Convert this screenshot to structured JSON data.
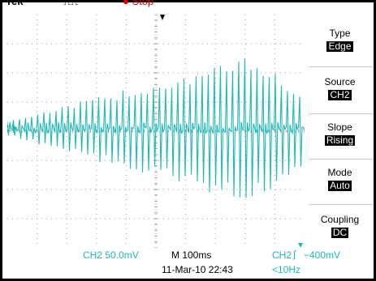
{
  "header": {
    "brand": "Tek",
    "acq_mode": "Stop",
    "acq_mode_color": "#e00000"
  },
  "menu": {
    "items": [
      {
        "label": "Type",
        "value": "Edge"
      },
      {
        "label": "Source",
        "value": "CH2"
      },
      {
        "label": "Slope",
        "value": "Rising"
      },
      {
        "label": "Mode",
        "value": "Auto"
      },
      {
        "label": "Coupling",
        "value": "DC"
      }
    ]
  },
  "status": {
    "channel_scale": "CH2  50.0mV",
    "timebase": "M 100ms",
    "trigger_source": "CH2",
    "trigger_level": "−400mV",
    "date_time": "11‑Mar‑10 22:43",
    "frequency": "<10Hz"
  },
  "display": {
    "channel_marker": "2",
    "trace_color": "#1fb7b7",
    "grid_color": "#9a9a9a"
  }
}
